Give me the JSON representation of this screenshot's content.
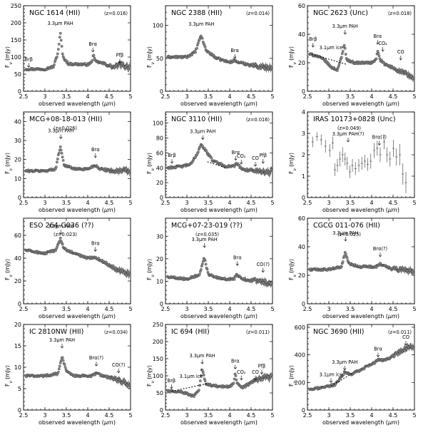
{
  "figure": {
    "xlabel_prefix": "observed wavelength (",
    "xlabel_unit": "μm",
    "xlabel_suffix": ")",
    "ylabel_prefix": "F",
    "ylabel_sub": "ν",
    "ylabel_suffix": " (mJy)"
  },
  "chart_data": [
    {
      "type": "scatter",
      "title": "NGC 1614 (HII)",
      "title2": "(z=0.016)",
      "xlim": [
        2.5,
        5
      ],
      "ylim": [
        0,
        250
      ],
      "yticks": [
        0,
        50,
        100,
        150,
        200,
        250
      ],
      "xticks": [
        2.5,
        3,
        3.5,
        4,
        4.5,
        5
      ],
      "knots": [
        [
          2.55,
          65
        ],
        [
          3.0,
          65
        ],
        [
          3.2,
          72
        ],
        [
          3.3,
          110
        ],
        [
          3.36,
          170
        ],
        [
          3.42,
          100
        ],
        [
          3.55,
          80
        ],
        [
          4.0,
          78
        ],
        [
          4.1,
          85
        ],
        [
          4.13,
          110
        ],
        [
          4.17,
          88
        ],
        [
          4.4,
          80
        ],
        [
          4.6,
          70
        ],
        [
          4.75,
          78
        ],
        [
          5.0,
          70
        ]
      ],
      "annotations": [
        {
          "text": "Brβ",
          "x": 2.62,
          "y": 70,
          "arrow": true
        },
        {
          "text": "3.3μm PAH",
          "x": 3.36,
          "y": 175,
          "arrow": false
        },
        {
          "text": "Brα",
          "x": 4.12,
          "y": 115,
          "arrow": true
        },
        {
          "text": "Pfβ",
          "x": 4.75,
          "y": 82,
          "arrow": true
        }
      ]
    },
    {
      "type": "scatter",
      "title": "NGC 2388 (HII)",
      "title2": "(z=0.014)",
      "xlim": [
        2.5,
        5
      ],
      "ylim": [
        0,
        130
      ],
      "yticks": [
        0,
        50,
        100
      ],
      "xticks": [
        2.5,
        3,
        3.5,
        4,
        4.5,
        5
      ],
      "knots": [
        [
          2.55,
          52
        ],
        [
          3.0,
          52
        ],
        [
          3.2,
          60
        ],
        [
          3.33,
          85
        ],
        [
          3.45,
          62
        ],
        [
          3.7,
          50
        ],
        [
          4.0,
          44
        ],
        [
          4.1,
          47
        ],
        [
          4.2,
          44
        ],
        [
          4.5,
          40
        ],
        [
          4.7,
          38
        ],
        [
          5.0,
          35
        ]
      ],
      "annotations": [
        {
          "text": "3.3μm PAH",
          "x": 3.34,
          "y": 90,
          "arrow": false
        },
        {
          "text": "Brα",
          "x": 4.12,
          "y": 50,
          "arrow": true
        }
      ]
    },
    {
      "type": "scatter",
      "title": "NGC 2623 (Unc)",
      "title2": "(z=0.018)",
      "xlim": [
        2.5,
        5
      ],
      "ylim": [
        0,
        60
      ],
      "yticks": [
        0,
        20,
        40,
        60
      ],
      "xticks": [
        2.5,
        3,
        3.5,
        4,
        4.5,
        5
      ],
      "knots": [
        [
          2.55,
          26
        ],
        [
          2.7,
          25
        ],
        [
          2.9,
          22
        ],
        [
          3.05,
          17
        ],
        [
          3.2,
          15
        ],
        [
          3.3,
          24
        ],
        [
          3.36,
          33
        ],
        [
          3.42,
          22
        ],
        [
          3.6,
          20
        ],
        [
          4.0,
          20
        ],
        [
          4.1,
          22
        ],
        [
          4.14,
          28
        ],
        [
          4.2,
          22
        ],
        [
          4.3,
          19
        ],
        [
          4.6,
          15
        ],
        [
          4.8,
          12
        ],
        [
          5.0,
          9
        ]
      ],
      "continuum": [
        [
          2.6,
          26
        ],
        [
          3.4,
          19
        ]
      ],
      "annotations": [
        {
          "text": "Brβ",
          "x": 2.63,
          "y": 31,
          "arrow": true
        },
        {
          "text": "3.1μm ice",
          "x": 3.05,
          "y": 25,
          "arrow": false
        },
        {
          "text": "3.3μm PAH",
          "x": 3.38,
          "y": 40,
          "arrow": true
        },
        {
          "text": "Brα",
          "x": 4.14,
          "y": 33,
          "arrow": true
        },
        {
          "text": "CO₂",
          "x": 4.26,
          "y": 28,
          "arrow": true
        },
        {
          "text": "CO",
          "x": 4.68,
          "y": 22,
          "arrow": true
        }
      ]
    },
    {
      "type": "scatter",
      "title": "MCG+08-18-013 (HII)",
      "title2": "(z=0.026)",
      "xlim": [
        2.5,
        5
      ],
      "ylim": [
        0,
        45
      ],
      "yticks": [
        0,
        10,
        20,
        30,
        40
      ],
      "xticks": [
        2.5,
        3,
        3.5,
        4,
        4.5,
        5
      ],
      "knots": [
        [
          2.55,
          14
        ],
        [
          3.0,
          14
        ],
        [
          3.25,
          15
        ],
        [
          3.36,
          27
        ],
        [
          3.45,
          17
        ],
        [
          3.7,
          15
        ],
        [
          4.0,
          15
        ],
        [
          4.17,
          17
        ],
        [
          4.3,
          15
        ],
        [
          4.6,
          14
        ],
        [
          5.0,
          14
        ]
      ],
      "annotations": [
        {
          "text": "3.3μm PAH",
          "x": 3.37,
          "y": 31,
          "arrow": true
        },
        {
          "text": "Brα",
          "x": 4.18,
          "y": 21,
          "arrow": true
        }
      ]
    },
    {
      "type": "scatter",
      "title": "NGC 3110 (HII)",
      "title2": "(z=0.016)",
      "xlim": [
        2.5,
        5
      ],
      "ylim": [
        0,
        115
      ],
      "yticks": [
        0,
        20,
        40,
        60,
        80,
        100
      ],
      "xticks": [
        2.5,
        3,
        3.5,
        4,
        4.5,
        5
      ],
      "knots": [
        [
          2.55,
          40
        ],
        [
          2.9,
          42
        ],
        [
          3.1,
          45
        ],
        [
          3.25,
          60
        ],
        [
          3.33,
          72
        ],
        [
          3.45,
          62
        ],
        [
          3.6,
          50
        ],
        [
          3.9,
          42
        ],
        [
          4.1,
          42
        ],
        [
          4.15,
          46
        ],
        [
          4.3,
          38
        ],
        [
          4.6,
          36
        ],
        [
          5.0,
          34
        ]
      ],
      "continuum": [
        [
          3.48,
          48
        ],
        [
          3.9,
          40
        ]
      ],
      "annotations": [
        {
          "text": "Brβ",
          "x": 2.65,
          "y": 46,
          "arrow": true
        },
        {
          "text": "3.3μm PAH",
          "x": 3.37,
          "y": 78,
          "arrow": true
        },
        {
          "text": "Brα",
          "x": 4.14,
          "y": 50,
          "arrow": true
        },
        {
          "text": "CO₂",
          "x": 4.27,
          "y": 45,
          "arrow": true
        },
        {
          "text": "CO",
          "x": 4.6,
          "y": 42,
          "arrow": true
        },
        {
          "text": "Pfβ",
          "x": 4.78,
          "y": 46,
          "arrow": true
        }
      ]
    },
    {
      "type": "errorbar",
      "title": "IRAS 10173+0828 (Unc)",
      "title2": "(z=0.049)",
      "xlim": [
        2.5,
        5
      ],
      "ylim": [
        0,
        4
      ],
      "yticks": [
        0,
        1,
        2,
        3,
        4
      ],
      "xticks": [
        2.5,
        3,
        3.5,
        4,
        4.5,
        5
      ],
      "points": [
        [
          2.62,
          2.6,
          0.25
        ],
        [
          2.72,
          2.85,
          0.2
        ],
        [
          2.82,
          2.7,
          0.25
        ],
        [
          2.92,
          2.4,
          0.3
        ],
        [
          3.02,
          2.2,
          0.3
        ],
        [
          3.09,
          2.55,
          0.3
        ],
        [
          3.14,
          1.3,
          0.3
        ],
        [
          3.2,
          1.5,
          0.3
        ],
        [
          3.26,
          1.8,
          0.35
        ],
        [
          3.32,
          2.0,
          0.35
        ],
        [
          3.38,
          1.8,
          0.3
        ],
        [
          3.43,
          1.6,
          0.3
        ],
        [
          3.49,
          1.2,
          0.3
        ],
        [
          3.55,
          1.5,
          0.3
        ],
        [
          3.62,
          1.35,
          0.3
        ],
        [
          3.7,
          1.5,
          0.3
        ],
        [
          3.77,
          1.6,
          0.3
        ],
        [
          3.84,
          1.7,
          0.3
        ],
        [
          3.91,
          1.55,
          0.3
        ],
        [
          3.98,
          1.7,
          0.35
        ],
        [
          4.06,
          2.2,
          0.35
        ],
        [
          4.13,
          2.3,
          0.35
        ],
        [
          4.2,
          2.0,
          0.35
        ],
        [
          4.29,
          2.6,
          0.35
        ],
        [
          4.36,
          2.0,
          0.35
        ],
        [
          4.43,
          1.8,
          0.35
        ],
        [
          4.51,
          2.3,
          0.4
        ],
        [
          4.58,
          1.9,
          0.4
        ],
        [
          4.66,
          2.0,
          0.5
        ],
        [
          4.73,
          1.1,
          0.5
        ],
        [
          4.8,
          0.7,
          0.5
        ]
      ],
      "annotations": [
        {
          "text": "3.3μm PAH(?)",
          "x": 3.45,
          "y": 2.6,
          "arrow": true
        },
        {
          "text": "Brα(?)",
          "x": 4.18,
          "y": 2.45,
          "arrow": true
        }
      ]
    },
    {
      "type": "scatter",
      "title": "ESO 264-G036 (??)",
      "title2": "(z=0.023)",
      "xlim": [
        2.5,
        5
      ],
      "ylim": [
        0,
        75
      ],
      "yticks": [
        0,
        20,
        40,
        60
      ],
      "xticks": [
        2.5,
        3,
        3.5,
        4,
        4.5,
        5
      ],
      "knots": [
        [
          2.55,
          47
        ],
        [
          3.0,
          44
        ],
        [
          3.25,
          47
        ],
        [
          3.36,
          57
        ],
        [
          3.45,
          48
        ],
        [
          3.7,
          44
        ],
        [
          4.0,
          40
        ],
        [
          4.17,
          41
        ],
        [
          4.4,
          36
        ],
        [
          4.7,
          30
        ],
        [
          5.0,
          26
        ]
      ],
      "annotations": [
        {
          "text": "3.3μm PAH",
          "x": 3.37,
          "y": 61,
          "arrow": true
        },
        {
          "text": "Brα",
          "x": 4.18,
          "y": 46,
          "arrow": true
        }
      ]
    },
    {
      "type": "scatter",
      "title": "MCG+07-23-019 (??)",
      "title2": "(z=0.035)",
      "xlim": [
        2.5,
        5
      ],
      "ylim": [
        0,
        38
      ],
      "yticks": [
        0,
        10,
        20,
        30
      ],
      "xticks": [
        2.5,
        3,
        3.5,
        4,
        4.5,
        5
      ],
      "knots": [
        [
          2.55,
          12
        ],
        [
          3.0,
          11
        ],
        [
          3.3,
          13
        ],
        [
          3.4,
          21
        ],
        [
          3.5,
          13
        ],
        [
          3.8,
          11
        ],
        [
          4.1,
          11
        ],
        [
          4.17,
          13
        ],
        [
          4.3,
          11
        ],
        [
          4.7,
          10
        ],
        [
          5.0,
          9
        ]
      ],
      "annotations": [
        {
          "text": "3.3μm PAH",
          "x": 3.41,
          "y": 25,
          "arrow": true
        },
        {
          "text": "Brα",
          "x": 4.18,
          "y": 17,
          "arrow": true
        },
        {
          "text": "CO(?)",
          "x": 4.78,
          "y": 14,
          "arrow": true
        }
      ]
    },
    {
      "type": "scatter",
      "title": "CGCG 011-076 (HII)",
      "title2": "(z=0.025)",
      "xlim": [
        2.5,
        5
      ],
      "ylim": [
        0,
        60
      ],
      "yticks": [
        0,
        20,
        40,
        60
      ],
      "xticks": [
        2.5,
        3,
        3.5,
        4,
        4.5,
        5
      ],
      "knots": [
        [
          2.55,
          24
        ],
        [
          3.0,
          24
        ],
        [
          3.3,
          26
        ],
        [
          3.38,
          36
        ],
        [
          3.47,
          28
        ],
        [
          3.7,
          26
        ],
        [
          4.1,
          26
        ],
        [
          4.2,
          28
        ],
        [
          4.4,
          25
        ],
        [
          4.7,
          24
        ],
        [
          5.0,
          23
        ]
      ],
      "annotations": [
        {
          "text": "3.3μm PAH",
          "x": 3.39,
          "y": 44,
          "arrow": true
        },
        {
          "text": "Brα(?)",
          "x": 4.2,
          "y": 33,
          "arrow": true
        }
      ]
    },
    {
      "type": "scatter",
      "title": "IC 2810NW (HII)",
      "title2": "(z=0.034)",
      "xlim": [
        2.5,
        5
      ],
      "ylim": [
        0,
        20
      ],
      "yticks": [
        0,
        5,
        10,
        15,
        20
      ],
      "xticks": [
        2.5,
        3,
        3.5,
        4,
        4.5,
        5
      ],
      "knots": [
        [
          2.55,
          8
        ],
        [
          3.0,
          8
        ],
        [
          3.3,
          8.5
        ],
        [
          3.4,
          12.5
        ],
        [
          3.5,
          9
        ],
        [
          3.7,
          8
        ],
        [
          4.1,
          8
        ],
        [
          4.2,
          8.6
        ],
        [
          4.4,
          7.8
        ],
        [
          4.7,
          7
        ],
        [
          5.0,
          6
        ]
      ],
      "annotations": [
        {
          "text": "3.3μm PAH",
          "x": 3.4,
          "y": 14.5,
          "arrow": true
        },
        {
          "text": "Brα(?)",
          "x": 4.2,
          "y": 10.3,
          "arrow": true
        },
        {
          "text": "CO(?)",
          "x": 4.72,
          "y": 8.7,
          "arrow": true
        }
      ]
    },
    {
      "type": "scatter",
      "title": "IC 694 (HII)",
      "title2": "(z=0.011)",
      "xlim": [
        2.5,
        5
      ],
      "ylim": [
        0,
        250
      ],
      "yticks": [
        0,
        50,
        100,
        150,
        200,
        250
      ],
      "xticks": [
        2.5,
        3,
        3.5,
        4,
        4.5,
        5
      ],
      "knots": [
        [
          2.55,
          55
        ],
        [
          2.8,
          55
        ],
        [
          3.0,
          48
        ],
        [
          3.15,
          40
        ],
        [
          3.28,
          55
        ],
        [
          3.35,
          120
        ],
        [
          3.45,
          75
        ],
        [
          3.7,
          70
        ],
        [
          4.0,
          68
        ],
        [
          4.1,
          78
        ],
        [
          4.13,
          110
        ],
        [
          4.17,
          80
        ],
        [
          4.3,
          65
        ],
        [
          4.5,
          80
        ],
        [
          4.75,
          95
        ],
        [
          5.0,
          95
        ]
      ],
      "continuum": [
        [
          2.65,
          55
        ],
        [
          3.5,
          78
        ]
      ],
      "annotations": [
        {
          "text": "Brβ",
          "x": 2.64,
          "y": 62,
          "arrow": true
        },
        {
          "text": "3.1μm ice",
          "x": 3.1,
          "y": 75,
          "arrow": false
        },
        {
          "text": "3.3μm PAH",
          "x": 3.36,
          "y": 135,
          "arrow": true
        },
        {
          "text": "Brα",
          "x": 4.13,
          "y": 120,
          "arrow": true
        },
        {
          "text": "CO₂",
          "x": 4.27,
          "y": 88,
          "arrow": true
        },
        {
          "text": "CO",
          "x": 4.6,
          "y": 88,
          "arrow": true
        },
        {
          "text": "Pfβ",
          "x": 4.75,
          "y": 105,
          "arrow": true
        }
      ]
    },
    {
      "type": "scatter",
      "title": "NGC 3690 (HII)",
      "title2": "(z=0.011)",
      "xlim": [
        2.5,
        5
      ],
      "ylim": [
        0,
        620
      ],
      "yticks": [
        0,
        200,
        400,
        600
      ],
      "xticks": [
        2.5,
        3,
        3.5,
        4,
        4.5,
        5
      ],
      "knots": [
        [
          2.55,
          145
        ],
        [
          3.0,
          175
        ],
        [
          3.15,
          185
        ],
        [
          3.3,
          240
        ],
        [
          3.37,
          275
        ],
        [
          3.5,
          255
        ],
        [
          3.8,
          300
        ],
        [
          4.1,
          350
        ],
        [
          4.15,
          365
        ],
        [
          4.3,
          360
        ],
        [
          4.6,
          410
        ],
        [
          4.85,
          455
        ],
        [
          5.0,
          440
        ]
      ],
      "continuum": [
        [
          3.05,
          175
        ],
        [
          3.55,
          265
        ]
      ],
      "annotations": [
        {
          "text": "3.1μm ice",
          "x": 3.05,
          "y": 200,
          "arrow": true
        },
        {
          "text": "3.3μm PAH",
          "x": 3.37,
          "y": 290,
          "arrow": true
        },
        {
          "text": "Brα",
          "x": 4.15,
          "y": 385,
          "arrow": true
        },
        {
          "text": "CO",
          "x": 4.8,
          "y": 470,
          "arrow": true
        }
      ]
    }
  ]
}
